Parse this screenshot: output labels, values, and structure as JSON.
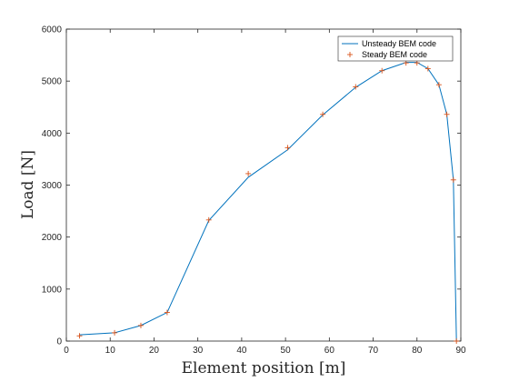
{
  "chart_data": {
    "type": "line",
    "xlabel": "Element position [m]",
    "ylabel": "Load [N]",
    "xlim": [
      0,
      90
    ],
    "ylim": [
      0,
      6000
    ],
    "xticks": [
      "0",
      "10",
      "20",
      "30",
      "40",
      "50",
      "60",
      "70",
      "80",
      "90"
    ],
    "yticks": [
      "0",
      "1000",
      "2000",
      "3000",
      "4000",
      "5000",
      "6000"
    ],
    "grid": false,
    "legend_position": "top-right",
    "series": [
      {
        "name": "Unsteady BEM code",
        "style": "line",
        "color": "#0072BD",
        "x": [
          3,
          11,
          17,
          23,
          32.5,
          41.5,
          50.5,
          58.5,
          66,
          72,
          77.5,
          80,
          82.5,
          85,
          86.8,
          88.3,
          89
        ],
        "y": [
          120,
          160,
          300,
          550,
          2320,
          3150,
          3680,
          4350,
          4880,
          5200,
          5360,
          5360,
          5240,
          4930,
          4360,
          3100,
          0
        ]
      },
      {
        "name": "Steady BEM code",
        "style": "marker",
        "marker": "+",
        "color": "#D95319",
        "x": [
          3,
          11,
          17,
          23,
          32.5,
          41.5,
          50.5,
          58.5,
          66,
          72,
          77.5,
          80,
          82.5,
          85,
          86.8,
          88.3,
          89
        ],
        "y": [
          100,
          160,
          300,
          550,
          2330,
          3220,
          3720,
          4360,
          4890,
          5200,
          5350,
          5350,
          5240,
          4930,
          4360,
          3100,
          0
        ]
      }
    ]
  }
}
